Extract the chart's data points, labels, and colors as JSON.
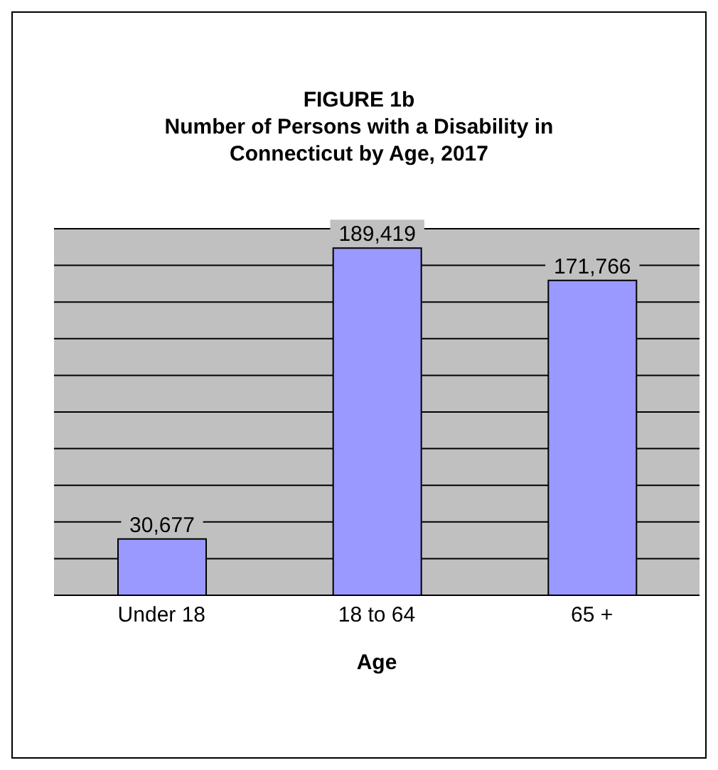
{
  "chart_data": {
    "type": "bar",
    "title": "FIGURE 1b",
    "subtitle": "Number of Persons with a Disability in Connecticut by Age, 2017",
    "xlabel": "Age",
    "categories": [
      "Under 18",
      "18 to 64",
      "65 +"
    ],
    "values": [
      30677,
      189419,
      171766
    ],
    "color": "#9999ff",
    "value_labels": [
      "30,677",
      "189,419",
      "171,766"
    ],
    "tick_labels": "x",
    "grid": "y"
  }
}
